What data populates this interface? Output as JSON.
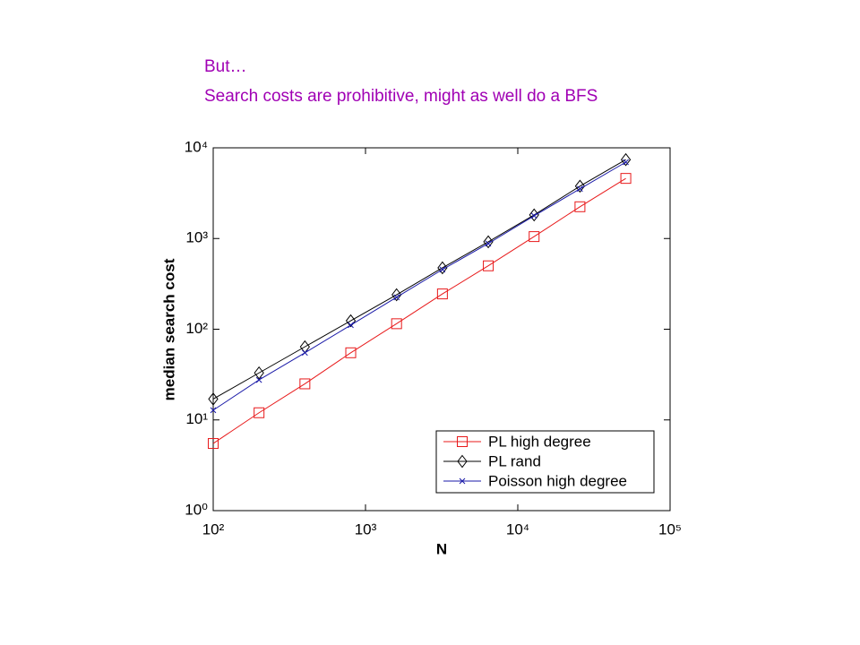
{
  "heading": {
    "line1": "But…",
    "line2": "Search costs are prohibitive, might as well do a BFS"
  },
  "chart_data": {
    "type": "line",
    "xlabel": "N",
    "ylabel": "median search cost",
    "x": [
      100,
      200,
      400,
      800,
      1600,
      3200,
      6400,
      12800,
      25600,
      51200
    ],
    "xscale": "log",
    "yscale": "log",
    "xlim": [
      100,
      100000
    ],
    "ylim": [
      1,
      10000
    ],
    "xticks": [
      {
        "value": 100,
        "label": "10²"
      },
      {
        "value": 1000,
        "label": "10³"
      },
      {
        "value": 10000,
        "label": "10⁴"
      },
      {
        "value": 100000,
        "label": "10⁵"
      }
    ],
    "yticks": [
      {
        "value": 1,
        "label": "10⁰"
      },
      {
        "value": 10,
        "label": "10¹"
      },
      {
        "value": 100,
        "label": "10²"
      },
      {
        "value": 1000,
        "label": "10³"
      },
      {
        "value": 10000,
        "label": "10⁴"
      }
    ],
    "legend": "lower right",
    "series": [
      {
        "name": "PL high degree",
        "color": "#e8191a",
        "marker": "square",
        "values": [
          5.5,
          12,
          25,
          55,
          115,
          245,
          500,
          1050,
          2240,
          4600
        ]
      },
      {
        "name": "PL rand",
        "color": "#000000",
        "marker": "diamond",
        "values": [
          17,
          33,
          64,
          124,
          240,
          475,
          920,
          1820,
          3780,
          7400
        ]
      },
      {
        "name": "Poisson high degree",
        "color": "#1a1aa8",
        "marker": "x",
        "values": [
          12.8,
          27.6,
          55,
          111,
          225,
          455,
          880,
          1780,
          3530,
          6950
        ]
      }
    ]
  }
}
